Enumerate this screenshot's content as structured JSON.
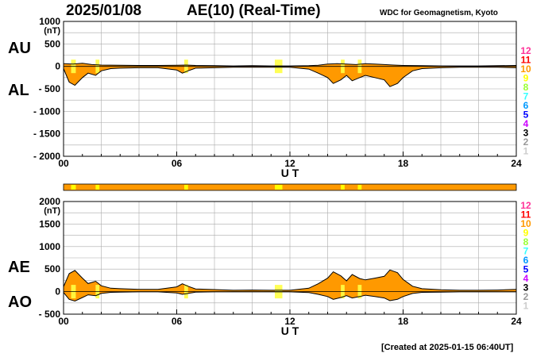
{
  "header": {
    "date": "2025/01/08",
    "index_title": "AE(10) (Real-Time)",
    "source": "WDC for Geomagnetism, Kyoto"
  },
  "footer": {
    "created": "[Created at 2025-01-15 06:40UT]"
  },
  "colors": {
    "fill": "#ff9900",
    "highlight": "#ffff44",
    "grid": "#aaaaaa",
    "station_counts": {
      "12": "#ff3399",
      "11": "#ff0000",
      "10": "#ff9900",
      "9": "#ffff00",
      "8": "#99ff33",
      "7": "#33ffff",
      "6": "#0099ff",
      "5": "#0000ff",
      "4": "#cc00ff",
      "3": "#000000",
      "2": "#999999",
      "1": "#cccccc"
    }
  },
  "station_legend": [
    "12",
    "11",
    "10",
    "9",
    "8",
    "7",
    "6",
    "5",
    "4",
    "3",
    "2",
    "1"
  ],
  "chart_data": [
    {
      "type": "area",
      "panel": "AU/AL",
      "series": [
        {
          "name": "AU",
          "x": [
            0,
            0.5,
            1,
            1.5,
            2,
            3,
            4,
            5,
            6,
            6.5,
            7,
            8,
            9,
            10,
            11,
            12,
            13,
            13.5,
            14,
            14.5,
            15,
            15.5,
            16,
            16.5,
            17,
            17.5,
            18,
            19,
            20,
            21,
            22,
            23,
            24
          ],
          "values": [
            60,
            50,
            70,
            40,
            30,
            25,
            20,
            20,
            25,
            30,
            20,
            15,
            10,
            15,
            10,
            10,
            15,
            25,
            50,
            60,
            50,
            40,
            60,
            50,
            40,
            30,
            20,
            15,
            10,
            10,
            10,
            15,
            20
          ]
        },
        {
          "name": "AL",
          "x": [
            0,
            0.3,
            0.6,
            1,
            1.3,
            1.7,
            2,
            2.5,
            3,
            4,
            5,
            6,
            6.3,
            6.6,
            7,
            8,
            9,
            10,
            11,
            12,
            13,
            13.5,
            14,
            14.3,
            14.7,
            15,
            15.3,
            15.7,
            16,
            16.5,
            17,
            17.3,
            17.7,
            18,
            18.5,
            19,
            20,
            21,
            22,
            23,
            24
          ],
          "values": [
            -50,
            -350,
            -420,
            -250,
            -150,
            -200,
            -100,
            -50,
            -40,
            -30,
            -30,
            -80,
            -150,
            -100,
            -40,
            -30,
            -20,
            -20,
            -20,
            -20,
            -60,
            -150,
            -250,
            -380,
            -300,
            -200,
            -320,
            -250,
            -200,
            -250,
            -300,
            -450,
            -380,
            -250,
            -100,
            -50,
            -30,
            -20,
            -20,
            -20,
            -30
          ]
        }
      ],
      "x_ticks": [
        "00",
        "06",
        "12",
        "18",
        "24"
      ],
      "y_ticks": [
        "1000",
        "500",
        "0",
        "- 500",
        "- 1000",
        "- 1500",
        "- 2000"
      ],
      "ylim": [
        -2000,
        1000
      ],
      "xlim": [
        0,
        24
      ],
      "xlabel": "U T",
      "unit": "(nT)",
      "labels": [
        "AU",
        "AL"
      ],
      "grid": true
    },
    {
      "type": "area",
      "panel": "AE/AO",
      "series": [
        {
          "name": "AE",
          "x": [
            0,
            0.3,
            0.6,
            1,
            1.3,
            1.7,
            2,
            2.5,
            3,
            4,
            5,
            6,
            6.3,
            6.6,
            7,
            8,
            9,
            10,
            11,
            12,
            13,
            13.5,
            14,
            14.3,
            14.7,
            15,
            15.3,
            15.7,
            16,
            16.5,
            17,
            17.3,
            17.7,
            18,
            18.5,
            19,
            20,
            21,
            22,
            23,
            24
          ],
          "values": [
            110,
            400,
            470,
            300,
            180,
            230,
            130,
            75,
            65,
            50,
            50,
            105,
            175,
            120,
            60,
            45,
            30,
            35,
            30,
            30,
            75,
            175,
            300,
            440,
            350,
            240,
            380,
            290,
            260,
            300,
            340,
            480,
            420,
            270,
            120,
            65,
            40,
            30,
            30,
            35,
            50
          ]
        },
        {
          "name": "AO",
          "x": [
            0,
            0.3,
            0.6,
            1,
            1.3,
            1.7,
            2,
            2.5,
            3,
            4,
            5,
            6,
            6.3,
            6.6,
            7,
            8,
            9,
            10,
            11,
            12,
            13,
            13.5,
            14,
            14.3,
            14.7,
            15,
            15.3,
            15.7,
            16,
            16.5,
            17,
            17.3,
            17.7,
            18,
            18.5,
            19,
            20,
            21,
            22,
            23,
            24
          ],
          "values": [
            -20,
            -170,
            -210,
            -130,
            -70,
            -90,
            -40,
            -15,
            -10,
            -5,
            -5,
            -30,
            -60,
            -40,
            -10,
            -5,
            -5,
            -5,
            -5,
            -5,
            -20,
            -60,
            -110,
            -170,
            -130,
            -90,
            -140,
            -110,
            -80,
            -110,
            -140,
            -200,
            -170,
            -110,
            -40,
            -15,
            -10,
            -5,
            -5,
            -5,
            -5
          ]
        }
      ],
      "x_ticks": [
        "00",
        "06",
        "12",
        "18",
        "24"
      ],
      "y_ticks": [
        "2000",
        "1500",
        "1000",
        "500",
        "0",
        "- 500"
      ],
      "ylim": [
        -500,
        2000
      ],
      "xlim": [
        0,
        24
      ],
      "xlabel": "U T",
      "unit": "(nT)",
      "labels": [
        "AE",
        "AO"
      ],
      "grid": true
    }
  ],
  "station_count_bar": {
    "default_count": 10,
    "segments": [
      {
        "start": 0.4,
        "end": 0.65,
        "count": 9
      },
      {
        "start": 1.7,
        "end": 1.9,
        "count": 9
      },
      {
        "start": 6.4,
        "end": 6.6,
        "count": 9
      },
      {
        "start": 11.2,
        "end": 11.6,
        "count": 9
      },
      {
        "start": 14.7,
        "end": 14.9,
        "count": 9
      },
      {
        "start": 15.6,
        "end": 15.8,
        "count": 9
      }
    ]
  }
}
